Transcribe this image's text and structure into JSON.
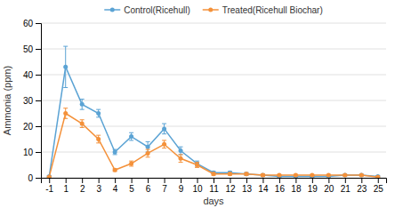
{
  "chart_data": {
    "type": "line",
    "xlabel": "days",
    "ylabel": "Ammonia (ppm)",
    "categories": [
      "-1",
      "1",
      "2",
      "3",
      "4",
      "5",
      "6",
      "7",
      "9",
      "10",
      "11",
      "12",
      "13",
      "14",
      "16",
      "18",
      "19",
      "20",
      "21",
      "23",
      "25"
    ],
    "series": [
      {
        "name": "Control(Ricehull)",
        "color": "#5BA3D4",
        "marker": "circle",
        "values": [
          0.5,
          43,
          28.5,
          25,
          10,
          16,
          12,
          19,
          10.5,
          5.5,
          2,
          2,
          1.5,
          1,
          0.5,
          0.5,
          0.5,
          0.5,
          1,
          1,
          0.5
        ],
        "errors": [
          0.3,
          8,
          2,
          1.5,
          1,
          1.5,
          2,
          2,
          1.5,
          1,
          0.5,
          0.5,
          0.5,
          0.5,
          0.3,
          0.3,
          0.3,
          0.3,
          0.3,
          0.3,
          0.3
        ]
      },
      {
        "name": "Treated(Ricehull Biochar)",
        "color": "#F4913A",
        "marker": "circle",
        "values": [
          0.3,
          25,
          21,
          15,
          3,
          5.5,
          9.5,
          13,
          7.5,
          5,
          1.5,
          1.5,
          1.5,
          1,
          1,
          1,
          1,
          1,
          1,
          1,
          0.3
        ],
        "errors": [
          0.3,
          2,
          1.5,
          1.5,
          0.5,
          1,
          1.5,
          1.5,
          1.5,
          1,
          0.5,
          0.5,
          0.5,
          0.5,
          0.3,
          0.3,
          0.3,
          0.3,
          0.3,
          0.3,
          0.3
        ]
      }
    ],
    "ylim": [
      0,
      60
    ],
    "yticks": [
      0,
      10,
      20,
      30,
      40,
      50,
      60
    ],
    "grid": true,
    "legend": "top"
  }
}
